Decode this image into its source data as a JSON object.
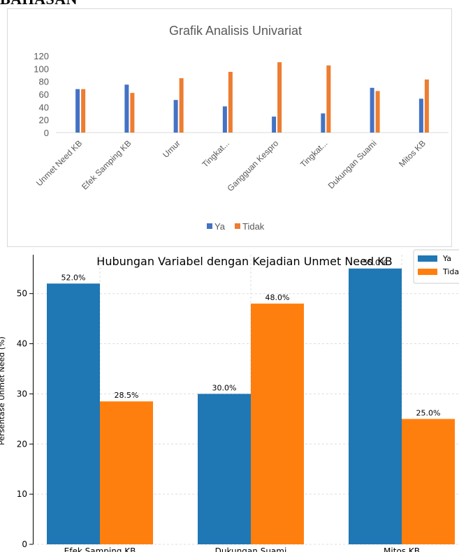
{
  "heading_fragment": "BAHASAN",
  "chart_data": [
    {
      "type": "bar",
      "title": "Grafik Analisis Univariat",
      "categories": [
        "Unmet Need KB",
        "Efek Samping KB",
        "Umur",
        "Tingkat...",
        "Gangguan Kespro",
        "Tingkat...",
        "Dukungan Suami",
        "Mitos KB"
      ],
      "series": [
        {
          "name": "Ya",
          "values": [
            68,
            75,
            51,
            41,
            25,
            30,
            70,
            53
          ]
        },
        {
          "name": "Tidak",
          "values": [
            68,
            62,
            85,
            95,
            110,
            105,
            65,
            83
          ]
        }
      ],
      "ylim": [
        0,
        120
      ],
      "yticks": [
        "0",
        "20",
        "40",
        "60",
        "80",
        "100",
        "120"
      ],
      "grid": false,
      "legend": "bottom",
      "colors": {
        "Ya": "#4472c4",
        "Tidak": "#ed7d31"
      }
    },
    {
      "type": "bar",
      "title": "Hubungan Variabel dengan Kejadian Unmet Need KB",
      "ylabel": "Persentase Unmet Need (%)",
      "categories": [
        "Efek Samping KB",
        "Dukungan Suami",
        "Mitos KB"
      ],
      "series": [
        {
          "name": "Ya",
          "values": [
            52.0,
            30.0,
            55.0
          ]
        },
        {
          "name": "Tidak",
          "values": [
            28.5,
            48.0,
            25.0
          ]
        }
      ],
      "data_labels": [
        [
          "52.0%",
          "30.0%",
          "55.0%"
        ],
        [
          "28.5%",
          "48.0%",
          "25.0%"
        ]
      ],
      "ylim": [
        0,
        57.75
      ],
      "yticks": [
        "0",
        "10",
        "20",
        "30",
        "40",
        "50"
      ],
      "grid": true,
      "legend": "top-right",
      "colors": {
        "Ya": "#1f77b4",
        "Tidak": "#ff7f0e"
      }
    }
  ]
}
